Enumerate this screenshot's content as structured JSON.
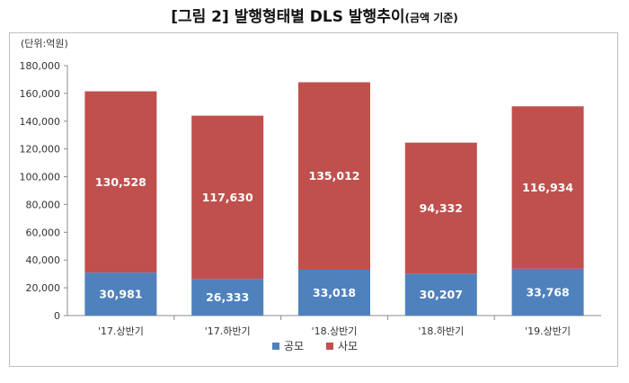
{
  "title": {
    "main": "[그림 2] 발행형태별 DLS 발행추이",
    "sub": "(금액 기준)"
  },
  "chart_data": {
    "type": "bar",
    "stacked": true,
    "unit_label": "(단위:억원)",
    "categories": [
      "'17.상반기",
      "'17.하반기",
      "'18.상반기",
      "'18.하반기",
      "'19.상반기"
    ],
    "series": [
      {
        "name": "공모",
        "color": "#4f81bd",
        "values": [
          30981,
          26333,
          33018,
          30207,
          33768
        ],
        "labels": [
          "30,981",
          "26,333",
          "33,018",
          "30,207",
          "33,768"
        ]
      },
      {
        "name": "사모",
        "color": "#c0504d",
        "values": [
          130528,
          117630,
          135012,
          94332,
          116934
        ],
        "labels": [
          "130,528",
          "117,630",
          "135,012",
          "94,332",
          "116,934"
        ]
      }
    ],
    "ylim": [
      0,
      180000
    ],
    "yticks": [
      0,
      20000,
      40000,
      60000,
      80000,
      100000,
      120000,
      140000,
      160000,
      180000
    ],
    "ytick_labels": [
      "0",
      "20,000",
      "40,000",
      "60,000",
      "80,000",
      "100,000",
      "120,000",
      "140,000",
      "160,000",
      "180,000"
    ],
    "grid": false,
    "legend_position": "bottom"
  }
}
